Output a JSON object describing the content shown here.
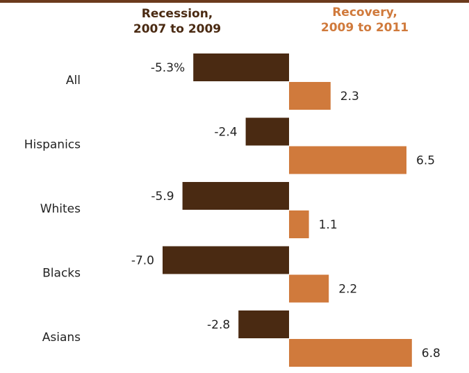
{
  "chart_data": {
    "type": "bar",
    "orientation": "horizontal",
    "categories": [
      "All",
      "Hispanics",
      "Whites",
      "Blacks",
      "Asians"
    ],
    "series": [
      {
        "name": "Recession, 2007 to 2009",
        "values": [
          -5.3,
          -2.4,
          -5.9,
          -7.0,
          -2.8
        ],
        "labels": [
          "-5.3%",
          "-2.4",
          "-5.9",
          "-7.0",
          "-2.8"
        ],
        "color": "#4a2a12"
      },
      {
        "name": "Recovery, 2009 to 2011",
        "values": [
          2.3,
          6.5,
          1.1,
          2.2,
          6.8
        ],
        "labels": [
          "2.3",
          "6.5",
          "1.1",
          "2.2",
          "6.8"
        ],
        "color": "#d07a3c"
      }
    ],
    "headers": {
      "recession": [
        "Recession,",
        "2007  to 2009"
      ],
      "recovery": [
        "Recovery,",
        "2009  to 2011"
      ]
    },
    "xlim": [
      -8,
      8
    ],
    "grid": false,
    "legend": "column headers above bars"
  },
  "colors": {
    "frame": "#6b3a1c",
    "text": "#222222"
  }
}
